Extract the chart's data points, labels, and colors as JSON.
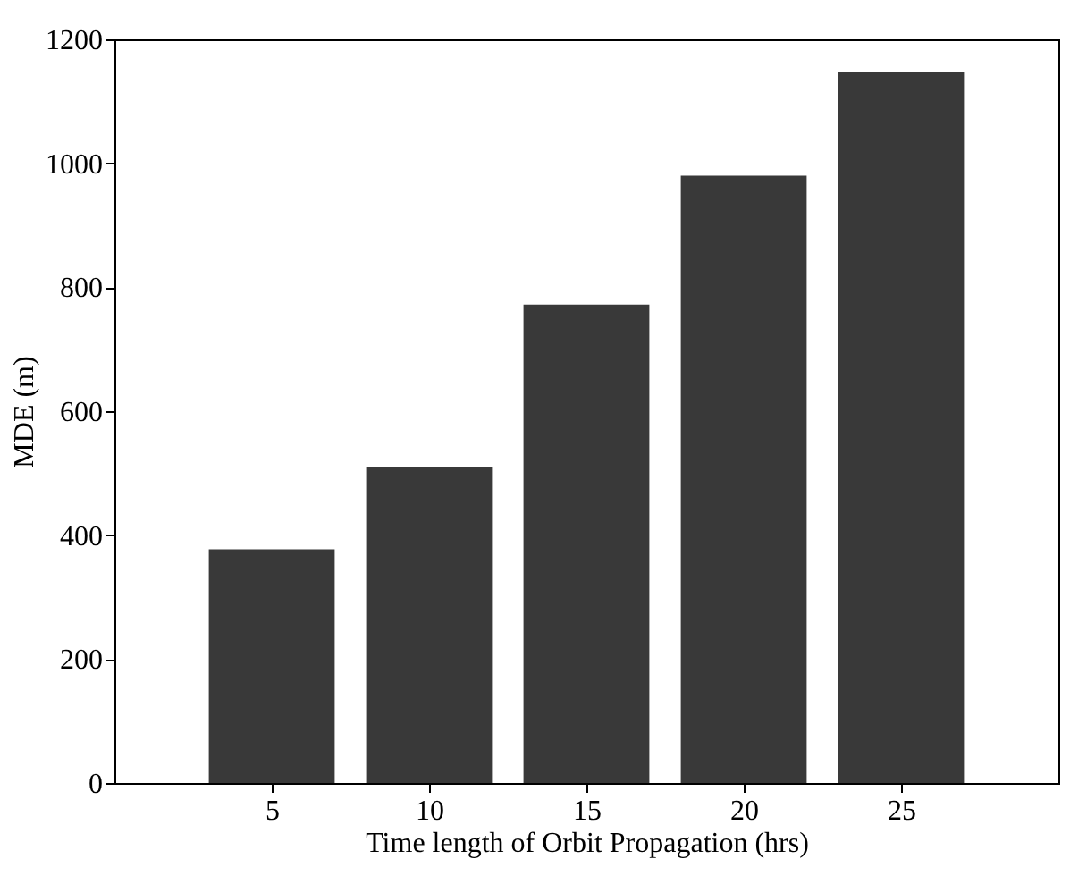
{
  "chart_data": {
    "type": "bar",
    "xlabel": "Time length of Orbit Propagation (hrs)",
    "ylabel": "MDE (m)",
    "x": [
      5,
      10,
      15,
      20,
      25
    ],
    "values": [
      377,
      509,
      772,
      980,
      1148
    ],
    "color": "#393939",
    "xlim": [
      0,
      30
    ],
    "xticks": [
      5,
      10,
      15,
      20,
      25
    ],
    "ylim": [
      0,
      1200
    ],
    "yticks": [
      0,
      200,
      400,
      600,
      800,
      1000,
      1200
    ],
    "grid": false
  }
}
